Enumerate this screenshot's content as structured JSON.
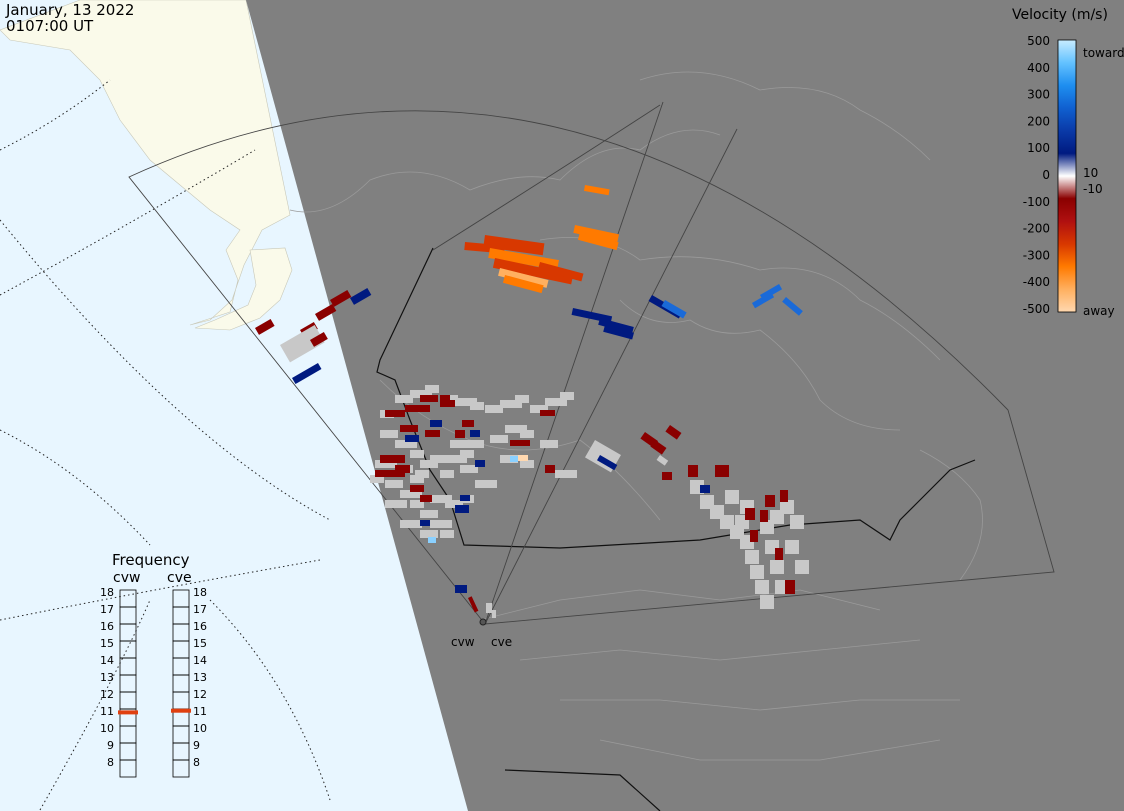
{
  "date_line": "January, 13 2022",
  "time_line": "0107:00 UT",
  "legend": {
    "title": "Velocity (m/s)",
    "ticks": [
      "500",
      "400",
      "300",
      "200",
      "100",
      "0",
      "-100",
      "-200",
      "-300",
      "-400",
      "-500"
    ],
    "toward_label": "toward",
    "away_label": "away",
    "pos_threshold": "10",
    "neg_threshold": "-10",
    "gradient_colors": [
      "#c8ecff",
      "#64c2ff",
      "#1e8ef0",
      "#1060d0",
      "#0a3aa8",
      "#001a80",
      "#ffffff",
      "#8a0000",
      "#b01010",
      "#d83800",
      "#ff7a00",
      "#ffb060",
      "#ffd8b0"
    ]
  },
  "frequency": {
    "title": "Frequency",
    "radars": [
      {
        "name": "cvw",
        "selected_mhz": 10.8
      },
      {
        "name": "cve",
        "selected_mhz": 10.9
      }
    ],
    "scale": [
      "18",
      "17",
      "16",
      "15",
      "14",
      "13",
      "12",
      "11",
      "10",
      "9",
      "8"
    ],
    "marker_color": "#e04010"
  },
  "sites": [
    {
      "code": "cvw"
    },
    {
      "code": "cve"
    }
  ],
  "colors": {
    "ocean": "#e8f6ff",
    "land_daylight": "#fafaea",
    "night": "#808080",
    "ground_scatter": "#c8c8c8"
  }
}
